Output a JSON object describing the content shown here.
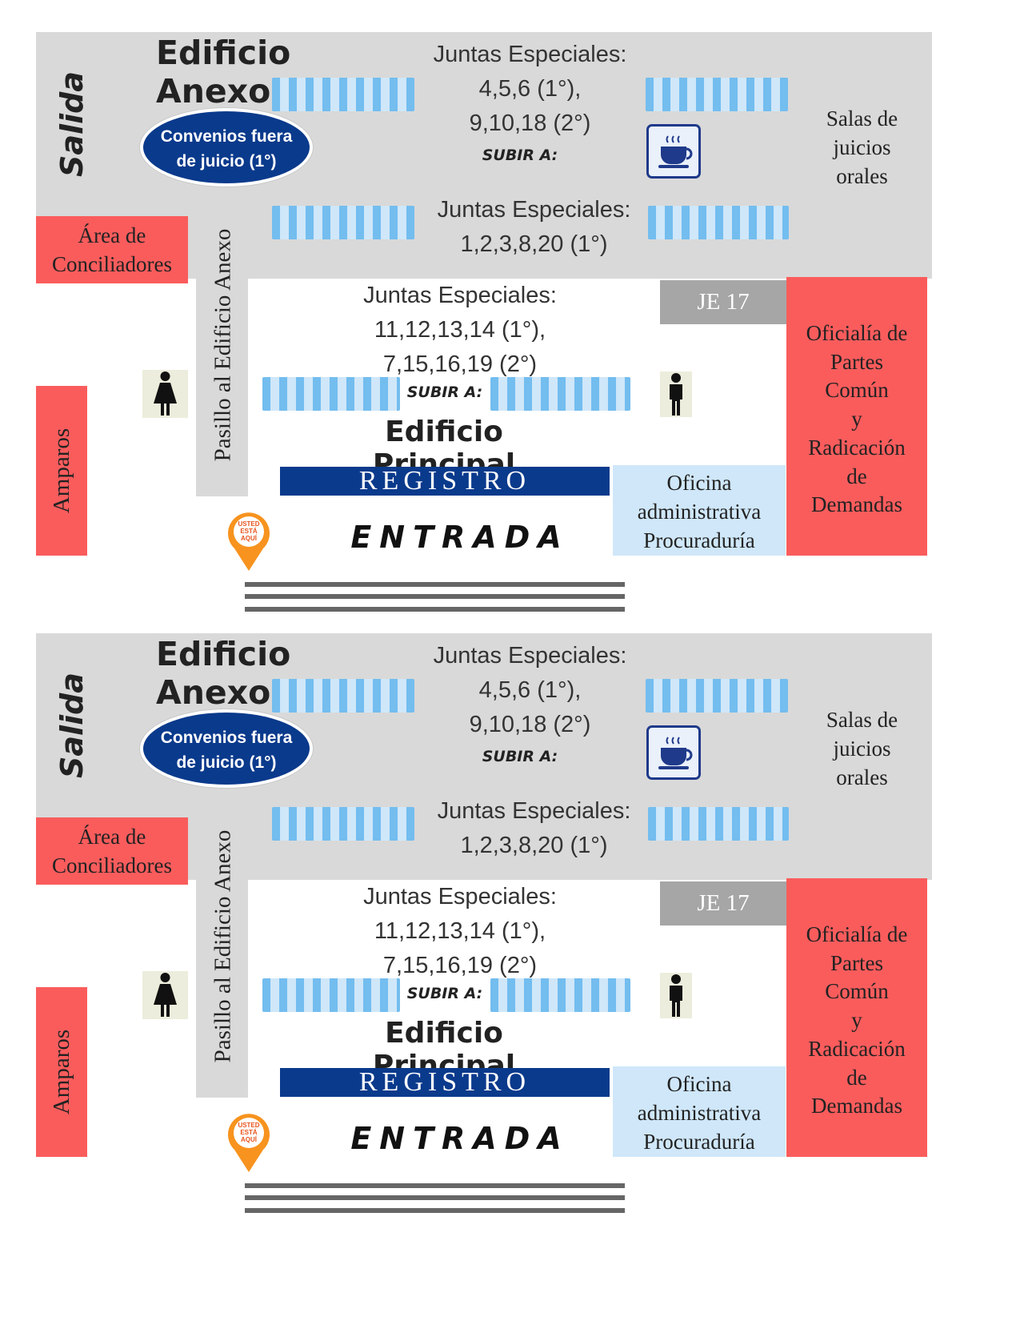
{
  "maps": [
    {
      "salida": "Salida",
      "edificio_anexo": "Edificio Anexo",
      "juntas_top": [
        "Juntas Especiales:",
        "4,5,6 (1°),",
        "9,10,18 (2°)"
      ],
      "subir_a": "SUBIR A:",
      "convenios": [
        "Convenios fuera",
        "de juicio (1°)"
      ],
      "salas": [
        "Salas de",
        "juicios",
        "orales"
      ],
      "coffee_icon": "coffee-cup-icon",
      "juntas_mid": [
        "Juntas Especiales:",
        "1,2,3,8,20 (1°)"
      ],
      "area_conciliadores": [
        "Área de",
        "Conciliadores"
      ],
      "pasillo": "Pasillo al Edificio Anexo",
      "juntas_principal": [
        "Juntas Especiales:",
        "11,12,13,14 (1°),",
        "7,15,16,19 (2°)"
      ],
      "je17": "JE 17",
      "oficialia": [
        "Oficialía de",
        "Partes",
        "Común",
        "y",
        "Radicación",
        "de",
        "Demandas"
      ],
      "amparos": "Amparos",
      "edificio_principal": "Edificio Principal",
      "registro": "REGISTRO",
      "oficina": [
        "Oficina",
        "administrativa",
        "Procuraduría"
      ],
      "entrada": "ENTRADA",
      "pin": [
        "USTED",
        "ESTÁ",
        "AQUÍ"
      ]
    },
    {
      "salida": "Salida",
      "edificio_anexo": "Edificio Anexo",
      "juntas_top": [
        "Juntas Especiales:",
        "4,5,6 (1°),",
        "9,10,18 (2°)"
      ],
      "subir_a": "SUBIR A:",
      "convenios": [
        "Convenios fuera",
        "de juicio (1°)"
      ],
      "salas": [
        "Salas de",
        "juicios",
        "orales"
      ],
      "coffee_icon": "coffee-cup-icon",
      "juntas_mid": [
        "Juntas Especiales:",
        "1,2,3,8,20 (1°)"
      ],
      "area_conciliadores": [
        "Área de",
        "Conciliadores"
      ],
      "pasillo": "Pasillo al Edificio Anexo",
      "juntas_principal": [
        "Juntas Especiales:",
        "11,12,13,14 (1°),",
        "7,15,16,19 (2°)"
      ],
      "je17": "JE 17",
      "oficialia": [
        "Oficialía de",
        "Partes",
        "Común",
        "y",
        "Radicación",
        "de",
        "Demandas"
      ],
      "amparos": "Amparos",
      "edificio_principal": "Edificio Principal",
      "registro": "REGISTRO",
      "oficina": [
        "Oficina",
        "administrativa",
        "Procuraduría"
      ],
      "entrada": "ENTRADA",
      "pin": [
        "USTED",
        "ESTÁ",
        "AQUÍ"
      ]
    }
  ],
  "colors": {
    "gray_area": "#d9d9d9",
    "red_area": "#fa5c5c",
    "light_blue": "#cfe7f9",
    "stripe_blue": "#73bdef",
    "navy": "#0a3a8c",
    "je17_gray": "#a6a6a6",
    "pin_orange": "#f7931e"
  }
}
